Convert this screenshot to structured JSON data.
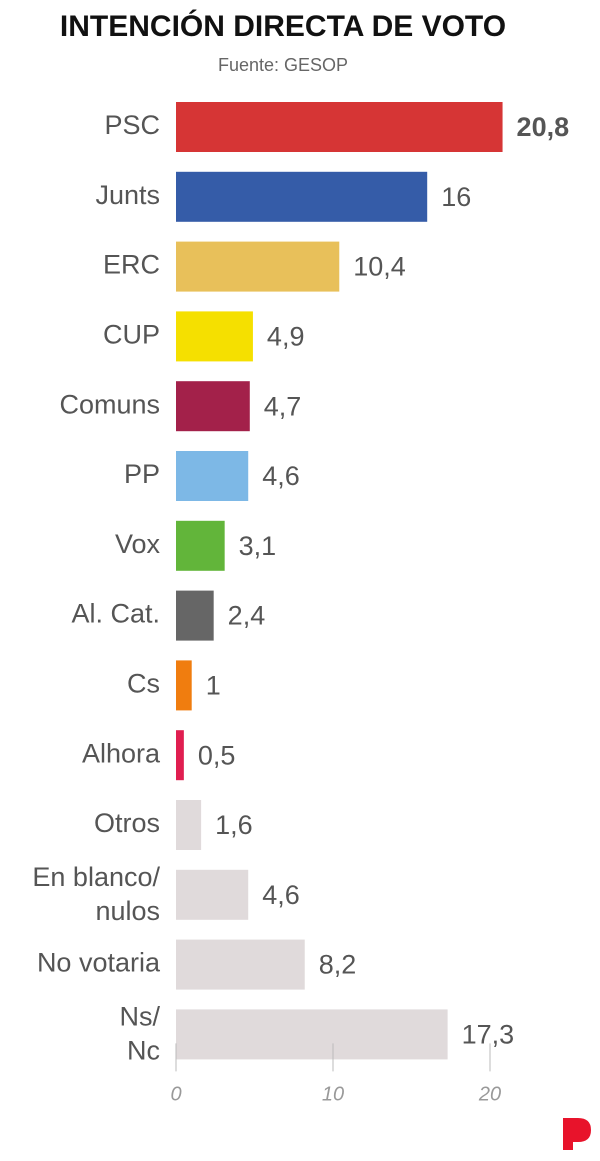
{
  "chart_data": {
    "type": "hbar",
    "title": "INTENCIÓN DIRECTA DE VOTO",
    "subtitle": "Fuente: GESOP",
    "categories": [
      "PSC",
      "Junts",
      "ERC",
      "CUP",
      "Comuns",
      "PP",
      "Vox",
      "Al. Cat.",
      "Cs",
      "Alhora",
      "Otros",
      "En blanco/nulos",
      "No votaria",
      "Ns/Nc"
    ],
    "values": [
      20.8,
      16,
      10.4,
      4.9,
      4.7,
      4.6,
      3.1,
      2.4,
      1,
      0.5,
      1.6,
      4.6,
      8.2,
      17.3
    ],
    "value_labels": [
      "20,8",
      "16",
      "10,4",
      "4,9",
      "4,7",
      "4,6",
      "3,1",
      "2,4",
      "1",
      "0,5",
      "1,6",
      "4,6",
      "8,2",
      "17,3"
    ],
    "colors": [
      "#d63535",
      "#355ca8",
      "#e8c05a",
      "#f5e000",
      "#a3214a",
      "#7db8e6",
      "#62b53a",
      "#666666",
      "#f07d0f",
      "#e01e50",
      "#e0dadb",
      "#e0dadb",
      "#e0dadb",
      "#e0dadb"
    ],
    "xlim": [
      0,
      22
    ],
    "xticks": [
      0,
      10,
      20
    ]
  }
}
